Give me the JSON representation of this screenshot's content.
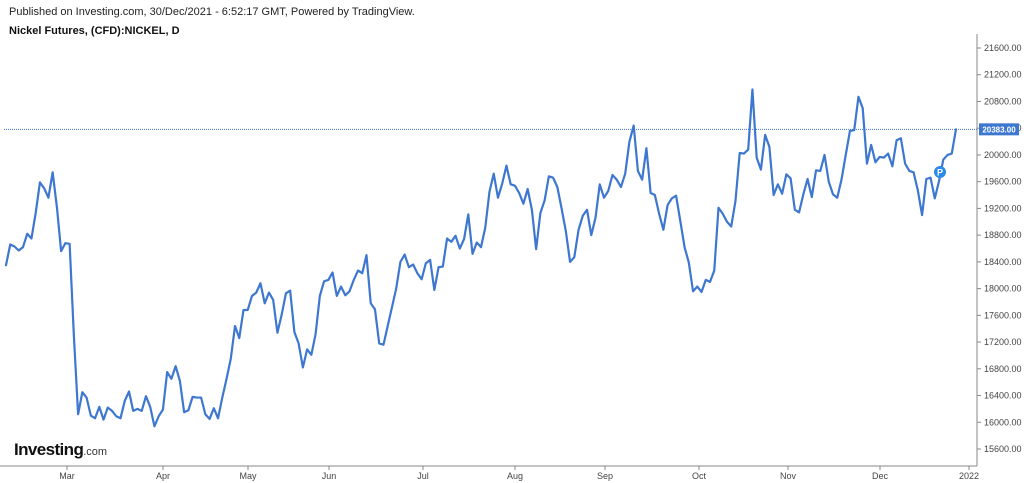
{
  "header": {
    "published": "Published on Investing.com, 30/Dec/2021 - 6:52:17 GMT, Powered by TradingView.",
    "title": "Nickel Futures, (CFD):NICKEL, D"
  },
  "logo": {
    "name": "Investing",
    "domain": ".com"
  },
  "chart_data": {
    "type": "line",
    "title": "Nickel Futures, (CFD):NICKEL, D",
    "xlabel": "",
    "ylabel": "",
    "x_ticks": [
      "Mar",
      "Apr",
      "May",
      "Jun",
      "Jul",
      "Aug",
      "Sep",
      "Oct",
      "Nov",
      "Dec",
      "2022"
    ],
    "y_ticks": [
      "15600.00",
      "16000.00",
      "16400.00",
      "16800.00",
      "17200.00",
      "17600.00",
      "18000.00",
      "18400.00",
      "18800.00",
      "19200.00",
      "19600.00",
      "20000.00",
      "20400.00",
      "20800.00",
      "21200.00",
      "21600.00"
    ],
    "ylim": [
      15400,
      21750
    ],
    "series": [
      {
        "color": "#3d77d0",
        "values": [
          18350,
          18660,
          18630,
          18570,
          18620,
          18820,
          18750,
          19130,
          19590,
          19500,
          19360,
          19740,
          19220,
          18560,
          18680,
          18670,
          17300,
          16120,
          16450,
          16370,
          16100,
          16060,
          16230,
          16040,
          16220,
          16170,
          16090,
          16060,
          16320,
          16460,
          16170,
          16200,
          16170,
          16390,
          16230,
          15940,
          16090,
          16190,
          16750,
          16650,
          16840,
          16620,
          16150,
          16180,
          16380,
          16370,
          16370,
          16120,
          16050,
          16210,
          16060,
          16370,
          16650,
          16950,
          17440,
          17260,
          17680,
          17680,
          17890,
          17940,
          18080,
          17780,
          17940,
          17830,
          17340,
          17610,
          17930,
          17970,
          17350,
          17180,
          16820,
          17090,
          17010,
          17320,
          17890,
          18110,
          18130,
          18240,
          17890,
          18030,
          17900,
          17960,
          18130,
          18270,
          18230,
          18500,
          17780,
          17690,
          17180,
          17160,
          17440,
          17720,
          18000,
          18400,
          18510,
          18320,
          18360,
          18230,
          18140,
          18380,
          18430,
          17980,
          18320,
          18330,
          18750,
          18700,
          18790,
          18600,
          18740,
          19110,
          18520,
          18690,
          18620,
          18910,
          19450,
          19720,
          19360,
          19570,
          19840,
          19560,
          19540,
          19430,
          19270,
          19490,
          19180,
          18590,
          19130,
          19320,
          19680,
          19660,
          19520,
          19200,
          18860,
          18400,
          18470,
          18880,
          19090,
          19180,
          18800,
          19060,
          19560,
          19360,
          19460,
          19700,
          19630,
          19520,
          19720,
          20200,
          20440,
          19760,
          19630,
          20100,
          19430,
          19400,
          19120,
          18880,
          19250,
          19350,
          19390,
          19010,
          18620,
          18390,
          17960,
          18030,
          17950,
          18130,
          18100,
          18270,
          19210,
          19120,
          19000,
          18930,
          19310,
          20030,
          20020,
          20080,
          20980,
          19960,
          19780,
          20300,
          20120,
          19400,
          19560,
          19420,
          19710,
          19650,
          19180,
          19140,
          19410,
          19640,
          19370,
          19770,
          19760,
          20000,
          19600,
          19410,
          19360,
          19630,
          20000,
          20360,
          20370,
          20870,
          20700,
          19870,
          20150,
          19890,
          19970,
          19960,
          20020,
          19830,
          20220,
          20250,
          19870,
          19760,
          19740,
          19470,
          19100,
          19640,
          19660,
          19350,
          19610,
          19930,
          20000,
          20020,
          20383
        ]
      }
    ],
    "last_value": "20383.00",
    "marker": "P",
    "grid": false,
    "legend": "none"
  }
}
